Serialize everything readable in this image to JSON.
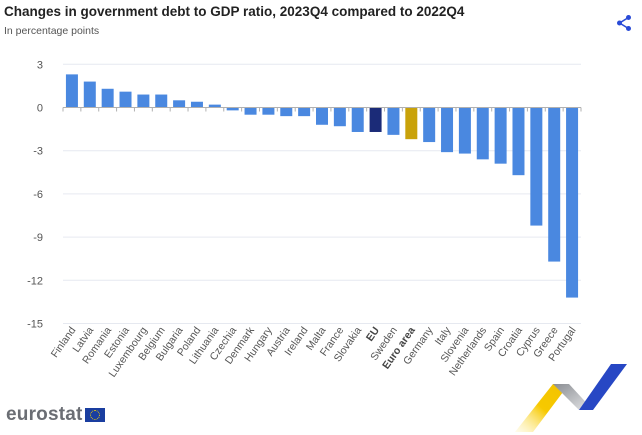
{
  "header": {
    "title": "Changes in government debt to GDP ratio, 2023Q4 compared to 2022Q4",
    "subtitle": "In percentage points",
    "share_icon": "share-icon"
  },
  "footer": {
    "logo_text": "eurostat",
    "flag_icon": "eu-flag-icon"
  },
  "colors": {
    "country": "#4a88e0",
    "eu": "#1b2b78",
    "euro_area": "#c9a20a",
    "grid": "#e6e9f0",
    "axis": "#b0b0b0"
  },
  "chart_data": {
    "type": "bar",
    "title": "Changes in government debt to GDP ratio, 2023Q4 compared to 2022Q4",
    "subtitle": "In percentage points",
    "xlabel": "",
    "ylabel": "",
    "ylim": [
      -15,
      3
    ],
    "yticks": [
      3,
      0,
      -3,
      -6,
      -9,
      -12,
      -15
    ],
    "grid": true,
    "legend": "none",
    "categories": [
      "Finland",
      "Latvia",
      "Romania",
      "Estonia",
      "Luxembourg",
      "Belgium",
      "Bulgaria",
      "Poland",
      "Lithuania",
      "Czechia",
      "Denmark",
      "Hungary",
      "Austria",
      "Ireland",
      "Malta",
      "France",
      "Slovakia",
      "EU",
      "Sweden",
      "Euro area",
      "Germany",
      "Italy",
      "Slovenia",
      "Netherlands",
      "Spain",
      "Croatia",
      "Cyprus",
      "Greece",
      "Portugal"
    ],
    "values": [
      2.3,
      1.8,
      1.3,
      1.1,
      0.9,
      0.9,
      0.5,
      0.4,
      0.2,
      -0.2,
      -0.5,
      -0.5,
      -0.6,
      -0.6,
      -1.2,
      -1.3,
      -1.7,
      -1.7,
      -1.9,
      -2.2,
      -2.4,
      -3.1,
      -3.2,
      -3.6,
      -3.9,
      -4.7,
      -8.2,
      -10.7,
      -13.2
    ],
    "highlight": {
      "EU": "eu",
      "Euro area": "euro_area"
    },
    "bold_labels": [
      "EU",
      "Euro area"
    ]
  }
}
